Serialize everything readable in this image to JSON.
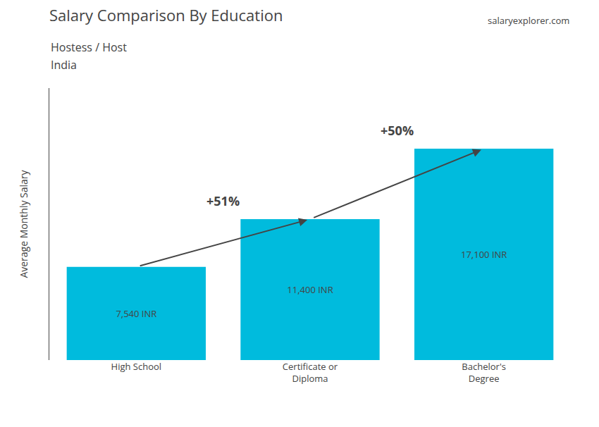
{
  "chart_data": {
    "type": "bar",
    "title": "Salary Comparison By Education",
    "subtitle": [
      "Hostess / Host",
      "India"
    ],
    "categories": [
      "High School",
      "Certificate or\nDiploma",
      "Bachelor's\nDegree"
    ],
    "values": [
      7540,
      11400,
      17100
    ],
    "value_labels": [
      "7,540 INR",
      "11,400 INR",
      "17,100 INR"
    ],
    "data_labels": true,
    "color": "#00bbdd",
    "ylabel": "Average Monthly Salary",
    "ylim": [
      0,
      22000
    ],
    "tick_labels": "x",
    "grid": false,
    "annotations": [
      {
        "text": "+51%",
        "from": 0,
        "to": 1
      },
      {
        "text": "+50%",
        "from": 1,
        "to": 2
      },
      {
        "text": "salaryexplorer.com"
      }
    ]
  }
}
